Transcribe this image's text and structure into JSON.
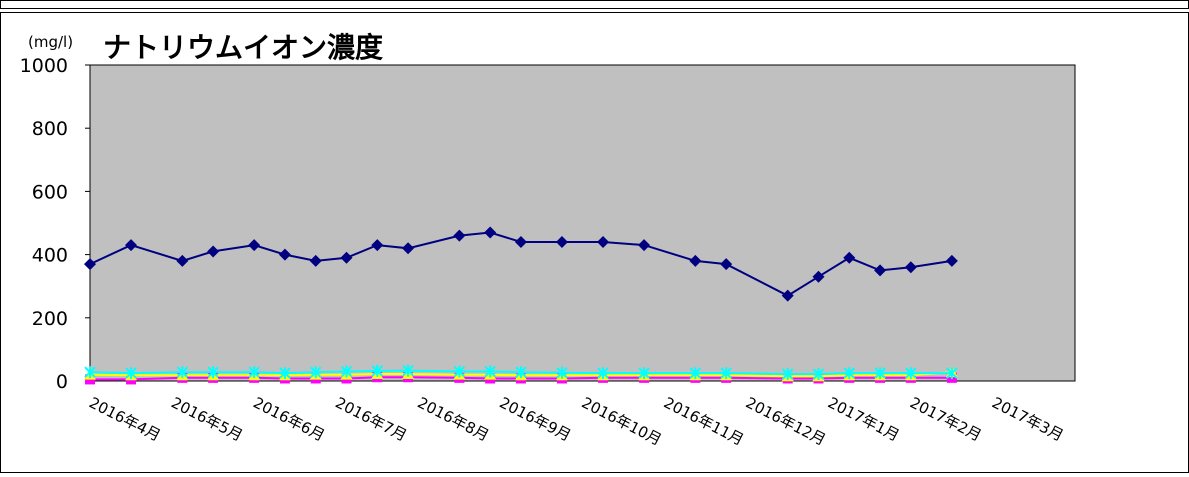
{
  "chart_data": {
    "type": "line",
    "title": "ナトリウムイオン濃度",
    "unit_label": "(mg/l)",
    "ylim": [
      0,
      1000
    ],
    "yticks": [
      0,
      200,
      400,
      600,
      800,
      1000
    ],
    "grid": false,
    "legend": "none",
    "plot_background": "#c0c0c0",
    "x_tick_labels": [
      "2016年4月",
      "2016年5月",
      "2016年6月",
      "2016年7月",
      "2016年8月",
      "2016年9月",
      "2016年10月",
      "2016年11月",
      "2016年12月",
      "2017年1月",
      "2017年2月",
      "2017年3月"
    ],
    "x_range": [
      0,
      24
    ],
    "series": [
      {
        "color": "#000080",
        "marker": "diamond",
        "points": [
          [
            0,
            370
          ],
          [
            1,
            430
          ],
          [
            2.25,
            380
          ],
          [
            3,
            410
          ],
          [
            4,
            430
          ],
          [
            4.75,
            400
          ],
          [
            5.5,
            380
          ],
          [
            6.25,
            390
          ],
          [
            7,
            430
          ],
          [
            7.75,
            420
          ],
          [
            9,
            460
          ],
          [
            9.75,
            470
          ],
          [
            10.5,
            440
          ],
          [
            11.5,
            440
          ],
          [
            12.5,
            440
          ],
          [
            13.5,
            430
          ],
          [
            14.75,
            380
          ],
          [
            15.5,
            370
          ],
          [
            17,
            270
          ],
          [
            17.75,
            330
          ],
          [
            18.5,
            390
          ],
          [
            19.25,
            350
          ],
          [
            20,
            360
          ],
          [
            21,
            380
          ]
        ]
      },
      {
        "color": "#ff00ff",
        "marker": "square",
        "points": [
          [
            0,
            5
          ],
          [
            1,
            5
          ],
          [
            2.25,
            10
          ],
          [
            3,
            10
          ],
          [
            4,
            10
          ],
          [
            4.75,
            8
          ],
          [
            5.5,
            8
          ],
          [
            6.25,
            8
          ],
          [
            7,
            12
          ],
          [
            7.75,
            12
          ],
          [
            9,
            10
          ],
          [
            9.75,
            8
          ],
          [
            10.5,
            8
          ],
          [
            11.5,
            8
          ],
          [
            12.5,
            10
          ],
          [
            13.5,
            10
          ],
          [
            14.75,
            10
          ],
          [
            15.5,
            10
          ],
          [
            17,
            8
          ],
          [
            17.75,
            8
          ],
          [
            18.5,
            10
          ],
          [
            19.25,
            10
          ],
          [
            20,
            10
          ],
          [
            21,
            10
          ]
        ]
      },
      {
        "color": "#ffff00",
        "marker": "triangle",
        "points": [
          [
            0,
            20
          ],
          [
            1,
            18
          ],
          [
            2.25,
            18
          ],
          [
            3,
            18
          ],
          [
            4,
            18
          ],
          [
            4.75,
            18
          ],
          [
            5.5,
            20
          ],
          [
            6.25,
            20
          ],
          [
            7,
            22
          ],
          [
            7.75,
            22
          ],
          [
            9,
            20
          ],
          [
            9.75,
            20
          ],
          [
            10.5,
            18
          ],
          [
            11.5,
            18
          ],
          [
            12.5,
            18
          ],
          [
            13.5,
            18
          ],
          [
            14.75,
            18
          ],
          [
            15.5,
            18
          ],
          [
            17,
            15
          ],
          [
            17.75,
            15
          ],
          [
            18.5,
            18
          ],
          [
            19.25,
            18
          ],
          [
            20,
            18
          ],
          [
            21,
            28
          ]
        ]
      },
      {
        "color": "#00ffff",
        "marker": "x",
        "points": [
          [
            0,
            28
          ],
          [
            1,
            25
          ],
          [
            2.25,
            28
          ],
          [
            3,
            28
          ],
          [
            4,
            28
          ],
          [
            4.75,
            25
          ],
          [
            5.5,
            28
          ],
          [
            6.25,
            30
          ],
          [
            7,
            32
          ],
          [
            7.75,
            33
          ],
          [
            9,
            30
          ],
          [
            9.75,
            30
          ],
          [
            10.5,
            28
          ],
          [
            11.5,
            26
          ],
          [
            12.5,
            25
          ],
          [
            13.5,
            25
          ],
          [
            14.75,
            25
          ],
          [
            15.5,
            25
          ],
          [
            17,
            22
          ],
          [
            17.75,
            22
          ],
          [
            18.5,
            25
          ],
          [
            19.25,
            25
          ],
          [
            20,
            25
          ],
          [
            21,
            25
          ]
        ]
      }
    ]
  }
}
